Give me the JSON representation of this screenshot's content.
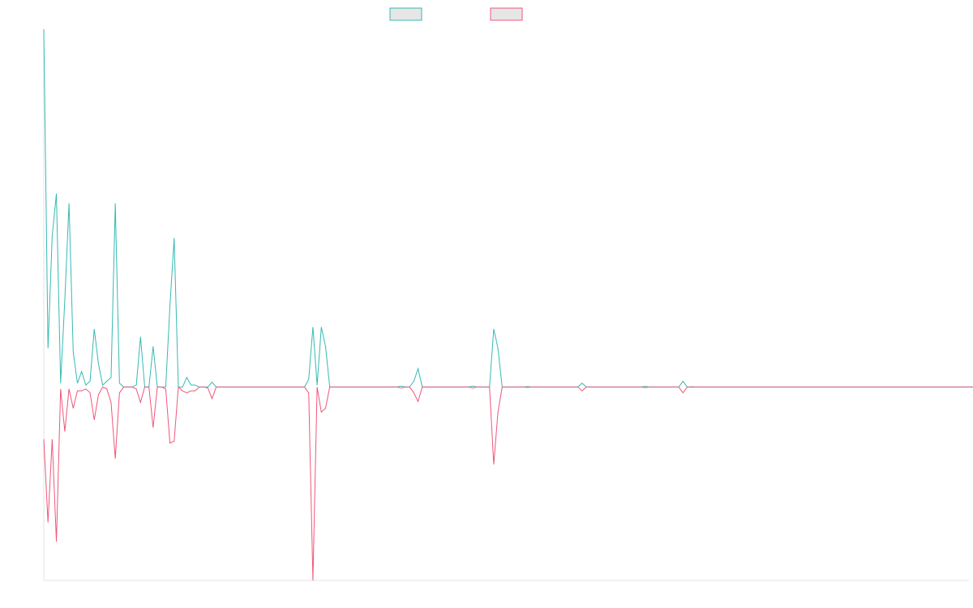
{
  "chart_data": {
    "type": "line",
    "title": "",
    "xlabel": "",
    "ylabel": "",
    "legend_position": "top-center",
    "grid": false,
    "xlim": [
      0,
      220
    ],
    "ylim": [
      -1.0,
      1.85
    ],
    "series": [
      {
        "color": "#36b9b3",
        "fill": "#e6e6e6",
        "values": [
          1.85,
          0.2,
          0.78,
          1.0,
          0.02,
          0.45,
          0.95,
          0.18,
          0.02,
          0.08,
          0.01,
          0.03,
          0.3,
          0.12,
          0.01,
          0.03,
          0.05,
          0.95,
          0.02,
          0.0,
          0.0,
          0.0,
          0.01,
          0.26,
          0.0,
          0.0,
          0.21,
          0.0,
          0.0,
          0.0,
          0.42,
          0.77,
          0.0,
          0.0,
          0.05,
          0.01,
          0.01,
          0.0,
          0.0,
          0.0,
          0.025,
          0.0,
          0.0,
          0.0,
          0.0,
          0.0,
          0.0,
          0.0,
          0.0,
          0.0,
          0.0,
          0.0,
          0.0,
          0.0,
          0.0,
          0.0,
          0.0,
          0.0,
          0.0,
          0.0,
          0.0,
          0.0,
          0.0,
          0.04,
          0.31,
          0.01,
          0.31,
          0.21,
          0.0,
          0.0,
          0.0,
          0.0,
          0.0,
          0.0,
          0.0,
          0.0,
          0.0,
          0.0,
          0.0,
          0.0,
          0.0,
          0.0,
          0.0,
          0.0,
          0.0,
          0.005,
          0.0,
          0.0,
          0.03,
          0.095,
          0.0,
          0.0,
          0.0,
          0.0,
          0.0,
          0.0,
          0.0,
          0.0,
          0.0,
          0.0,
          0.0,
          0.0,
          0.005,
          0.0,
          0.0,
          0.0,
          0.0,
          0.3,
          0.2,
          0.0,
          0.0,
          0.0,
          0.0,
          0.0,
          0.0,
          0.002,
          0.0,
          0.0,
          0.0,
          0.0,
          0.0,
          0.0,
          0.0,
          0.0,
          0.0,
          0.0,
          0.0,
          0.0,
          0.02,
          0.0,
          0.0,
          0.0,
          0.0,
          0.0,
          0.0,
          0.0,
          0.0,
          0.0,
          0.0,
          0.0,
          0.0,
          0.0,
          0.0,
          0.003,
          0.0,
          0.0,
          0.0,
          0.0,
          0.0,
          0.0,
          0.0,
          0.0,
          0.03,
          0.0,
          0.001,
          0.0,
          0.0,
          0.0,
          0.0,
          0.0,
          0.0,
          0.0,
          0.0,
          0.0,
          0.0,
          0.0,
          0.0,
          0.0,
          0.0,
          0.0,
          0.0,
          0.0,
          0.0,
          0.0,
          0.0,
          0.0,
          0.0,
          0.0,
          0.0,
          0.0,
          0.0,
          0.0,
          0.0,
          0.0,
          0.0,
          0.0,
          0.0,
          0.0,
          0.0,
          0.0,
          0.0,
          0.0,
          0.0,
          0.0,
          0.0,
          0.0,
          0.0,
          0.0,
          0.0,
          0.0,
          0.0,
          0.0,
          0.0,
          0.0,
          0.0,
          0.0,
          0.0,
          0.0,
          0.0,
          0.0,
          0.0,
          0.0,
          0.0,
          0.0,
          0.0,
          0.0,
          0.0,
          0.0,
          0.0,
          0.0,
          0.0,
          0.0
        ]
      },
      {
        "color": "#f0567a",
        "fill": "#e6e6e6",
        "values": [
          -0.27,
          -0.7,
          -0.27,
          -0.8,
          -0.01,
          -0.23,
          -0.01,
          -0.11,
          -0.02,
          -0.02,
          -0.01,
          -0.03,
          -0.17,
          -0.04,
          0.0,
          -0.01,
          -0.08,
          -0.37,
          -0.03,
          0.0,
          0.0,
          0.0,
          -0.01,
          -0.08,
          0.0,
          0.0,
          -0.21,
          0.0,
          0.0,
          -0.01,
          -0.29,
          -0.28,
          0.0,
          -0.02,
          -0.03,
          -0.02,
          -0.02,
          0.0,
          0.0,
          -0.004,
          -0.06,
          0.0,
          0.0,
          0.0,
          0.0,
          0.0,
          0.0,
          0.0,
          0.0,
          0.0,
          0.0,
          0.0,
          0.0,
          0.0,
          0.0,
          0.0,
          0.0,
          0.0,
          0.0,
          0.0,
          0.0,
          0.0,
          0.0,
          -0.03,
          -1.0,
          0.0,
          -0.13,
          -0.11,
          0.0,
          0.0,
          0.0,
          0.0,
          0.0,
          0.0,
          0.0,
          0.0,
          0.0,
          0.0,
          0.0,
          0.0,
          0.0,
          0.0,
          0.0,
          0.0,
          0.0,
          -0.005,
          0.0,
          0.0,
          -0.03,
          -0.075,
          0.0,
          0.0,
          0.0,
          0.0,
          0.0,
          0.0,
          0.0,
          0.0,
          0.0,
          0.0,
          0.0,
          0.0,
          -0.005,
          0.0,
          0.0,
          0.0,
          0.0,
          -0.4,
          -0.13,
          0.0,
          0.0,
          0.0,
          0.0,
          0.0,
          0.0,
          -0.002,
          0.0,
          0.0,
          0.0,
          0.0,
          0.0,
          0.0,
          0.0,
          0.0,
          0.0,
          0.0,
          0.0,
          0.0,
          -0.02,
          0.0,
          0.0,
          0.0,
          0.0,
          0.0,
          0.0,
          0.0,
          0.0,
          0.0,
          0.0,
          0.0,
          0.0,
          0.0,
          0.0,
          -0.003,
          0.0,
          0.0,
          0.0,
          0.0,
          0.0,
          0.0,
          0.0,
          0.0,
          -0.03,
          0.0,
          -0.001,
          0.0,
          0.0,
          0.0,
          0.0,
          0.0,
          0.0,
          0.0,
          0.0,
          0.0,
          0.0,
          0.0,
          0.0,
          0.0,
          0.0,
          0.0,
          0.0,
          0.0,
          0.0,
          0.0,
          0.0,
          0.0,
          0.0,
          0.0,
          0.0,
          0.0,
          0.0,
          0.0,
          0.0,
          0.0,
          0.0,
          0.0,
          0.0,
          0.0,
          0.0,
          0.0,
          0.0,
          0.0,
          0.0,
          0.0,
          0.0,
          0.0,
          0.0,
          0.0,
          0.0,
          0.0,
          0.0,
          0.0,
          0.0,
          0.0,
          0.0,
          0.0,
          0.0,
          0.0,
          0.0,
          0.0,
          0.0,
          0.0,
          0.0,
          0.0,
          0.0,
          0.0,
          0.0,
          0.0,
          0.0,
          0.0,
          0.0,
          0.0,
          0.0,
          0.0,
          0.0
        ]
      }
    ]
  }
}
